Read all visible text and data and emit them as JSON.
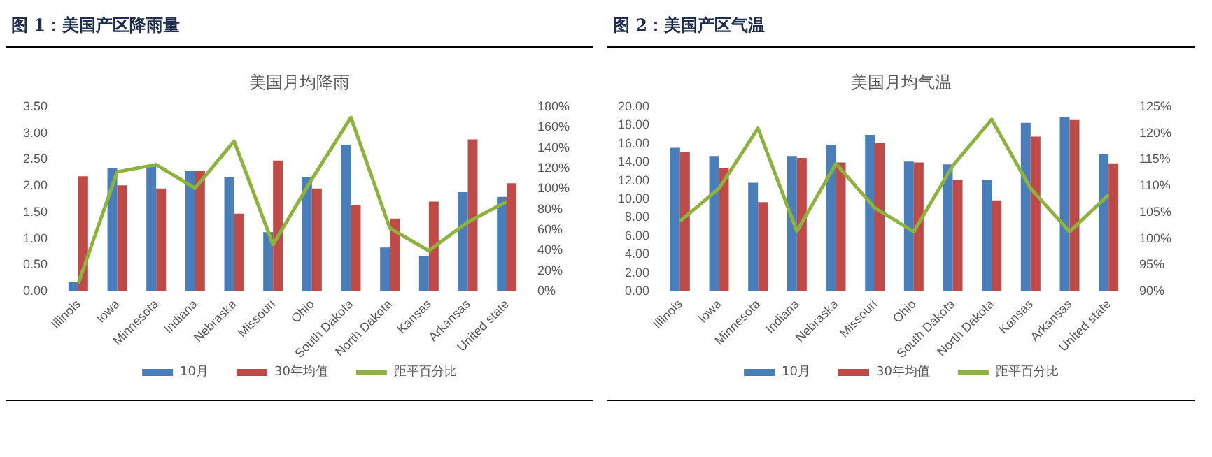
{
  "chart_data": [
    {
      "type": "bar",
      "title": "图 1：美国产区降雨量",
      "subtitle": "美国月均降雨",
      "categories": [
        "Illinois",
        "Iowa",
        "Minnesota",
        "Indiana",
        "Nebraska",
        "Missouri",
        "Ohio",
        "South Dakota",
        "North Dakota",
        "Kansas",
        "Arkansas",
        "United state"
      ],
      "series": [
        {
          "name": "10月",
          "color": "#4a7ebb",
          "values": [
            0.16,
            2.32,
            2.38,
            2.28,
            2.15,
            1.11,
            2.15,
            2.77,
            0.82,
            0.66,
            1.87,
            1.78
          ]
        },
        {
          "name": "30年均值",
          "color": "#be4b48",
          "values": [
            2.17,
            2.0,
            1.94,
            2.28,
            1.46,
            2.47,
            1.94,
            1.63,
            1.37,
            1.69,
            2.87,
            2.04
          ]
        },
        {
          "name": "距平百分比",
          "type": "line",
          "axis": "y2",
          "color": "#8db33e",
          "values": [
            7,
            116,
            123,
            100,
            146,
            45,
            109,
            169,
            61,
            39,
            67,
            87
          ]
        }
      ],
      "ylim": [
        0,
        3.5
      ],
      "yticks": [
        {
          "value": 0,
          "label": "0.00"
        },
        {
          "value": 0.5,
          "label": "0.50"
        },
        {
          "value": 1,
          "label": "1.00"
        },
        {
          "value": 1.5,
          "label": "1.50"
        },
        {
          "value": 2,
          "label": "2.00"
        },
        {
          "value": 2.5,
          "label": "2.50"
        },
        {
          "value": 3,
          "label": "3.00"
        },
        {
          "value": 3.5,
          "label": "3.50"
        }
      ],
      "y2lim": [
        0,
        180
      ],
      "y2ticks": [
        {
          "value": 0,
          "label": "0%"
        },
        {
          "value": 20,
          "label": "20%"
        },
        {
          "value": 40,
          "label": "40%"
        },
        {
          "value": 60,
          "label": "60%"
        },
        {
          "value": 80,
          "label": "80%"
        },
        {
          "value": 100,
          "label": "100%"
        },
        {
          "value": 120,
          "label": "120%"
        },
        {
          "value": 140,
          "label": "140%"
        },
        {
          "value": 160,
          "label": "160%"
        },
        {
          "value": 180,
          "label": "180%"
        }
      ],
      "legend": "bottom",
      "marker": "none",
      "grid": false
    },
    {
      "type": "bar",
      "title": "图 2：美国产区气温",
      "subtitle": "美国月均气温",
      "categories": [
        "Illinois",
        "Iowa",
        "Minnesota",
        "Indiana",
        "Nebraska",
        "Missouri",
        "Ohio",
        "South Dakota",
        "North Dakota",
        "Kansas",
        "Arkansas",
        "United state"
      ],
      "series": [
        {
          "name": "10月",
          "color": "#4a7ebb",
          "values": [
            15.5,
            14.6,
            11.7,
            14.6,
            15.8,
            16.9,
            14.0,
            13.7,
            12.0,
            18.2,
            18.8,
            14.8
          ]
        },
        {
          "name": "30年均值",
          "color": "#be4b48",
          "values": [
            15.0,
            13.3,
            9.6,
            14.4,
            13.9,
            16.0,
            13.9,
            12.0,
            9.8,
            16.7,
            18.5,
            13.8
          ]
        },
        {
          "name": "距平百分比",
          "type": "line",
          "axis": "y2",
          "color": "#8db33e",
          "values": [
            103.2,
            109.4,
            120.8,
            101.3,
            114.1,
            105.7,
            101.2,
            113.7,
            122.5,
            109.4,
            101.2,
            108.2
          ]
        }
      ],
      "ylim": [
        0,
        20
      ],
      "yticks": [
        {
          "value": 0,
          "label": "0.00"
        },
        {
          "value": 2,
          "label": "2.00"
        },
        {
          "value": 4,
          "label": "4.00"
        },
        {
          "value": 6,
          "label": "6.00"
        },
        {
          "value": 8,
          "label": "8.00"
        },
        {
          "value": 10,
          "label": "10.00"
        },
        {
          "value": 12,
          "label": "12.00"
        },
        {
          "value": 14,
          "label": "14.00"
        },
        {
          "value": 16,
          "label": "16.00"
        },
        {
          "value": 18,
          "label": "18.00"
        },
        {
          "value": 20,
          "label": "20.00"
        }
      ],
      "y2lim": [
        90,
        125
      ],
      "y2ticks": [
        {
          "value": 90,
          "label": "90%"
        },
        {
          "value": 95,
          "label": "95%"
        },
        {
          "value": 100,
          "label": "100%"
        },
        {
          "value": 105,
          "label": "105%"
        },
        {
          "value": 110,
          "label": "110%"
        },
        {
          "value": 115,
          "label": "115%"
        },
        {
          "value": 120,
          "label": "120%"
        },
        {
          "value": 125,
          "label": "125%"
        }
      ],
      "legend": "bottom",
      "marker": "none",
      "grid": false
    }
  ]
}
